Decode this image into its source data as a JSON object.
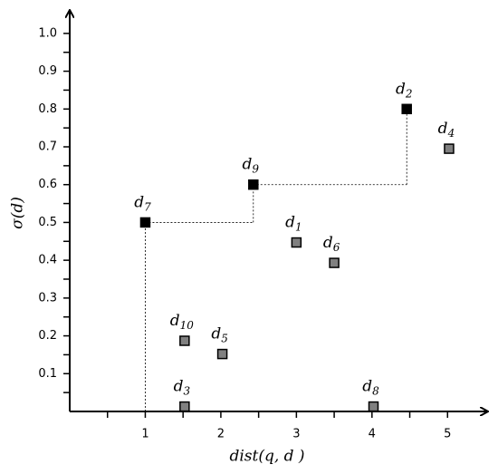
{
  "chart_data": {
    "type": "scatter",
    "x_label": "dist(q, d )",
    "y_label": "σ(d)",
    "point_label": "d",
    "label_subscripts": [
      "7",
      "9",
      "2",
      "4",
      "1",
      "6",
      "10",
      "5",
      "3",
      "8"
    ],
    "x": [
      1,
      2.43,
      4.46,
      5.02,
      3,
      3.5,
      1.52,
      2.02,
      1.52,
      4.02
    ],
    "y": [
      0.5,
      0.6,
      0.8,
      0.695,
      0.447,
      0.393,
      0.187,
      0.152,
      0.013,
      0.013
    ],
    "colors": [
      "#000000",
      "#000000",
      "#000000",
      "#808080",
      "#808080",
      "#808080",
      "#808080",
      "#808080",
      "#808080",
      "#808080"
    ],
    "staircase": [
      0,
      1,
      2
    ],
    "xlim": [
      0,
      5.5
    ],
    "ylim": [
      0,
      1.05
    ],
    "xticks": [
      1,
      2,
      3,
      4,
      5
    ],
    "xminorticks": [
      0.5,
      1.5,
      2.5,
      3.5,
      4.5
    ],
    "yticks": [
      0.1,
      0.2,
      0.3,
      0.4,
      0.5,
      0.6,
      0.7,
      0.8,
      0.9,
      {
        "value": 1,
        "label": "1.0"
      }
    ],
    "yminorticks": [
      0.05,
      0.15,
      0.25,
      0.35,
      0.45,
      0.55,
      0.65,
      0.75,
      0.85,
      0.95
    ]
  }
}
